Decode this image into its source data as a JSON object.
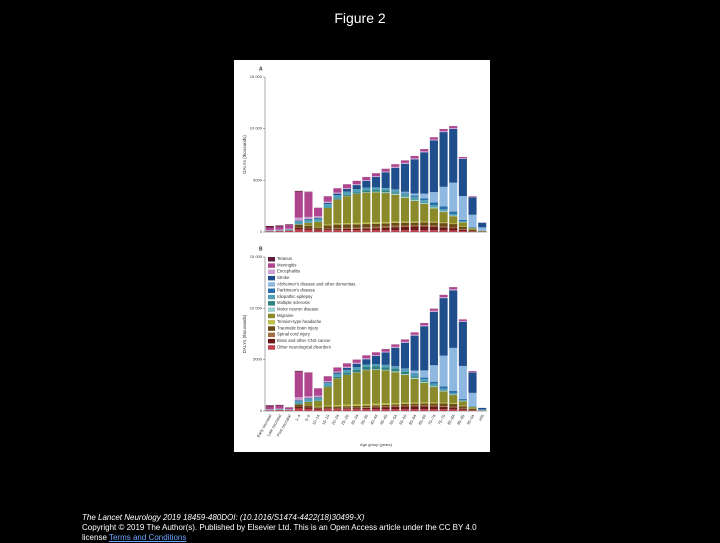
{
  "title": "Figure 2",
  "footer": {
    "citation": "The Lancet Neurology 2019 18459-480DOI: (10.1016/S1474-4422(18)30499-X)",
    "copyright": "Copyright © 2019 The Author(s). Published by Elsevier Ltd. This is an Open Access article under the CC BY 4.0 license",
    "link": "Terms and Conditions"
  },
  "chart_data": [
    {
      "type": "bar",
      "stacked": true,
      "panel_label": "A",
      "ylabel": "DALYs (thousands)",
      "categories": [
        null,
        null,
        null,
        null,
        null,
        null,
        null,
        null,
        null,
        null,
        null,
        null,
        null,
        null,
        null,
        null,
        null,
        null,
        null,
        null,
        null,
        null,
        null
      ],
      "ylim": [
        0,
        15000
      ],
      "yticks": [
        0,
        5000,
        {
          "value": 10000,
          "label": "10 000"
        },
        {
          "value": 15000,
          "label": "15 000"
        }
      ],
      "series": [
        {
          "color": "#5a1f3a",
          "values": [
            150,
            100,
            60,
            80,
            40,
            20,
            15,
            10,
            10,
            10,
            10,
            10,
            10,
            10,
            10,
            10,
            10,
            10,
            10,
            10,
            5,
            2,
            1
          ]
        },
        {
          "color": "#b0458f",
          "values": [
            250,
            300,
            350,
            2500,
            2400,
            800,
            500,
            400,
            350,
            300,
            280,
            260,
            250,
            240,
            230,
            220,
            210,
            200,
            190,
            180,
            120,
            60,
            15
          ]
        },
        {
          "color": "#c9a0d0",
          "values": [
            50,
            60,
            80,
            300,
            200,
            150,
            120,
            110,
            100,
            100,
            100,
            100,
            100,
            100,
            100,
            100,
            100,
            100,
            100,
            90,
            60,
            25,
            5
          ]
        },
        {
          "color": "#1f4e8c",
          "values": [
            10,
            10,
            20,
            60,
            60,
            80,
            100,
            150,
            250,
            400,
            650,
            1000,
            1500,
            2100,
            2700,
            3300,
            4000,
            5000,
            5300,
            5200,
            3600,
            1700,
            450
          ]
        },
        {
          "color": "#8fb8e0",
          "values": [
            0,
            0,
            0,
            0,
            0,
            0,
            0,
            0,
            0,
            0,
            0,
            0,
            10,
            30,
            80,
            200,
            450,
            1000,
            1900,
            2800,
            2300,
            1200,
            320
          ]
        },
        {
          "color": "#2a6fa8",
          "values": [
            0,
            0,
            0,
            0,
            0,
            0,
            0,
            0,
            0,
            0,
            5,
            10,
            20,
            40,
            70,
            120,
            180,
            250,
            270,
            230,
            120,
            40,
            8
          ]
        },
        {
          "color": "#4fa0b8",
          "values": [
            50,
            60,
            80,
            300,
            300,
            300,
            350,
            330,
            300,
            280,
            260,
            240,
            220,
            200,
            190,
            180,
            170,
            160,
            150,
            140,
            90,
            40,
            10
          ]
        },
        {
          "color": "#2f7f7f",
          "values": [
            0,
            0,
            0,
            0,
            0,
            10,
            40,
            80,
            120,
            150,
            170,
            170,
            160,
            140,
            120,
            100,
            80,
            60,
            40,
            25,
            10,
            3,
            1
          ]
        },
        {
          "color": "#9fd0d0",
          "values": [
            0,
            0,
            0,
            5,
            5,
            5,
            10,
            15,
            20,
            30,
            40,
            60,
            80,
            100,
            120,
            130,
            120,
            100,
            80,
            50,
            25,
            8,
            2
          ]
        },
        {
          "color": "#8a8a2a",
          "values": [
            0,
            0,
            0,
            20,
            250,
            500,
            1600,
            2300,
            2600,
            2800,
            2900,
            2900,
            2800,
            2600,
            2300,
            2000,
            1700,
            1300,
            1000,
            700,
            400,
            150,
            40
          ]
        },
        {
          "color": "#c0c050",
          "values": [
            0,
            0,
            0,
            5,
            30,
            50,
            90,
            120,
            130,
            140,
            140,
            140,
            130,
            120,
            110,
            100,
            90,
            80,
            70,
            60,
            35,
            15,
            4
          ]
        },
        {
          "color": "#6b4a1a",
          "values": [
            10,
            20,
            40,
            300,
            250,
            150,
            300,
            350,
            340,
            320,
            310,
            300,
            290,
            280,
            270,
            260,
            270,
            300,
            320,
            330,
            240,
            120,
            40
          ]
        },
        {
          "color": "#a07040",
          "values": [
            0,
            0,
            0,
            10,
            15,
            20,
            50,
            90,
            110,
            120,
            130,
            130,
            130,
            130,
            120,
            110,
            100,
            90,
            80,
            60,
            35,
            15,
            4
          ]
        },
        {
          "color": "#6a1a1a",
          "values": [
            5,
            5,
            15,
            150,
            150,
            110,
            100,
            100,
            110,
            130,
            160,
            200,
            250,
            300,
            340,
            360,
            380,
            350,
            300,
            230,
            120,
            40,
            8
          ]
        },
        {
          "color": "#c04050",
          "values": [
            60,
            80,
            100,
            250,
            200,
            150,
            180,
            180,
            180,
            170,
            170,
            170,
            170,
            170,
            170,
            170,
            170,
            170,
            160,
            150,
            100,
            40,
            10
          ]
        }
      ]
    },
    {
      "type": "bar",
      "stacked": true,
      "panel_label": "B",
      "ylabel": "DALYs (thousands)",
      "xlabel": "Age group (years)",
      "legend": "upper-left",
      "categories": [
        "Early neonatal",
        "Late neonatal",
        "Post neonatal",
        "1–4",
        "5–9",
        "10–14",
        "15–19",
        "20–24",
        "25–29",
        "30–34",
        "35–39",
        "40–44",
        "45–49",
        "50–54",
        "55–59",
        "60–64",
        "65–69",
        "70–74",
        "75–79",
        "80–84",
        "85–89",
        "90–94",
        "≥95"
      ],
      "ylim": [
        0,
        15000
      ],
      "yticks": [
        0,
        5000,
        {
          "value": 10000,
          "label": "10 000"
        },
        {
          "value": 15000,
          "label": "15 000"
        }
      ],
      "series": [
        {
          "name": "Tetanus",
          "color": "#5a1f3a",
          "values": [
            120,
            80,
            30,
            70,
            30,
            15,
            10,
            10,
            8,
            8,
            8,
            8,
            8,
            8,
            8,
            8,
            8,
            8,
            8,
            8,
            5,
            2,
            0
          ]
        },
        {
          "name": "Meningitis",
          "color": "#b0458f",
          "values": [
            250,
            280,
            150,
            2500,
            2300,
            700,
            450,
            380,
            330,
            300,
            270,
            250,
            240,
            230,
            220,
            210,
            210,
            200,
            200,
            200,
            150,
            80,
            10
          ]
        },
        {
          "name": "Encephalitis",
          "color": "#c9a0d0",
          "values": [
            50,
            60,
            40,
            300,
            200,
            150,
            120,
            110,
            100,
            100,
            100,
            100,
            100,
            100,
            100,
            100,
            100,
            110,
            110,
            110,
            80,
            40,
            5
          ]
        },
        {
          "name": "Stroke",
          "color": "#1f4e8c",
          "values": [
            10,
            10,
            10,
            60,
            60,
            70,
            90,
            120,
            200,
            330,
            520,
            800,
            1200,
            1800,
            2500,
            3400,
            4300,
            5200,
            5600,
            5600,
            4300,
            2000,
            150
          ]
        },
        {
          "name": "Alzheimer's disease and other dementias",
          "color": "#8fb8e0",
          "values": [
            0,
            0,
            0,
            0,
            0,
            0,
            0,
            0,
            0,
            0,
            0,
            0,
            10,
            40,
            100,
            280,
            700,
            1600,
            3000,
            4200,
            3200,
            1300,
            100
          ]
        },
        {
          "name": "Parkinson's disease",
          "color": "#2a6fa8",
          "values": [
            0,
            0,
            0,
            0,
            0,
            0,
            0,
            0,
            0,
            0,
            3,
            8,
            15,
            30,
            55,
            95,
            140,
            200,
            220,
            190,
            110,
            35,
            3
          ]
        },
        {
          "name": "Idiopathic epilepsy",
          "color": "#4fa0b8",
          "values": [
            50,
            60,
            40,
            300,
            280,
            280,
            300,
            290,
            270,
            250,
            230,
            210,
            200,
            190,
            180,
            170,
            160,
            150,
            140,
            130,
            90,
            40,
            5
          ]
        },
        {
          "name": "Multiple sclerosis",
          "color": "#2f7f7f",
          "values": [
            0,
            0,
            0,
            0,
            0,
            15,
            70,
            140,
            210,
            260,
            280,
            280,
            260,
            230,
            200,
            160,
            120,
            90,
            60,
            35,
            15,
            5,
            0
          ]
        },
        {
          "name": "Motor neuron disease",
          "color": "#9fd0d0",
          "values": [
            0,
            0,
            0,
            5,
            5,
            5,
            8,
            12,
            16,
            24,
            32,
            48,
            64,
            80,
            96,
            104,
            96,
            80,
            64,
            40,
            20,
            6,
            0
          ]
        },
        {
          "name": "Migraine",
          "color": "#8a8a2a",
          "values": [
            0,
            0,
            0,
            20,
            300,
            550,
            1800,
            2600,
            2900,
            3100,
            3300,
            3300,
            3200,
            3000,
            2700,
            2300,
            1900,
            1500,
            1100,
            800,
            450,
            160,
            15
          ]
        },
        {
          "name": "Tension-type headache",
          "color": "#c0c050",
          "values": [
            0,
            0,
            0,
            5,
            35,
            60,
            100,
            130,
            140,
            150,
            150,
            150,
            140,
            130,
            120,
            110,
            100,
            90,
            80,
            70,
            40,
            15,
            2
          ]
        },
        {
          "name": "Traumatic brain injury",
          "color": "#6b4a1a",
          "values": [
            10,
            20,
            20,
            250,
            200,
            100,
            150,
            150,
            150,
            150,
            150,
            150,
            150,
            150,
            160,
            170,
            190,
            220,
            250,
            280,
            220,
            110,
            10
          ]
        },
        {
          "name": "Spinal cord injury",
          "color": "#a07040",
          "values": [
            0,
            0,
            0,
            8,
            10,
            12,
            25,
            40,
            50,
            60,
            65,
            70,
            75,
            80,
            80,
            80,
            80,
            75,
            70,
            55,
            35,
            15,
            2
          ]
        },
        {
          "name": "Brain and other CNS cancer",
          "color": "#6a1a1a",
          "values": [
            5,
            5,
            10,
            140,
            140,
            100,
            80,
            80,
            90,
            110,
            140,
            170,
            210,
            250,
            280,
            300,
            300,
            280,
            240,
            190,
            100,
            35,
            3
          ]
        },
        {
          "name": "Other neurological disorders",
          "color": "#c04050",
          "values": [
            60,
            80,
            60,
            250,
            200,
            150,
            180,
            180,
            180,
            170,
            170,
            170,
            170,
            170,
            170,
            170,
            170,
            170,
            170,
            160,
            110,
            45,
            5
          ]
        }
      ]
    }
  ]
}
